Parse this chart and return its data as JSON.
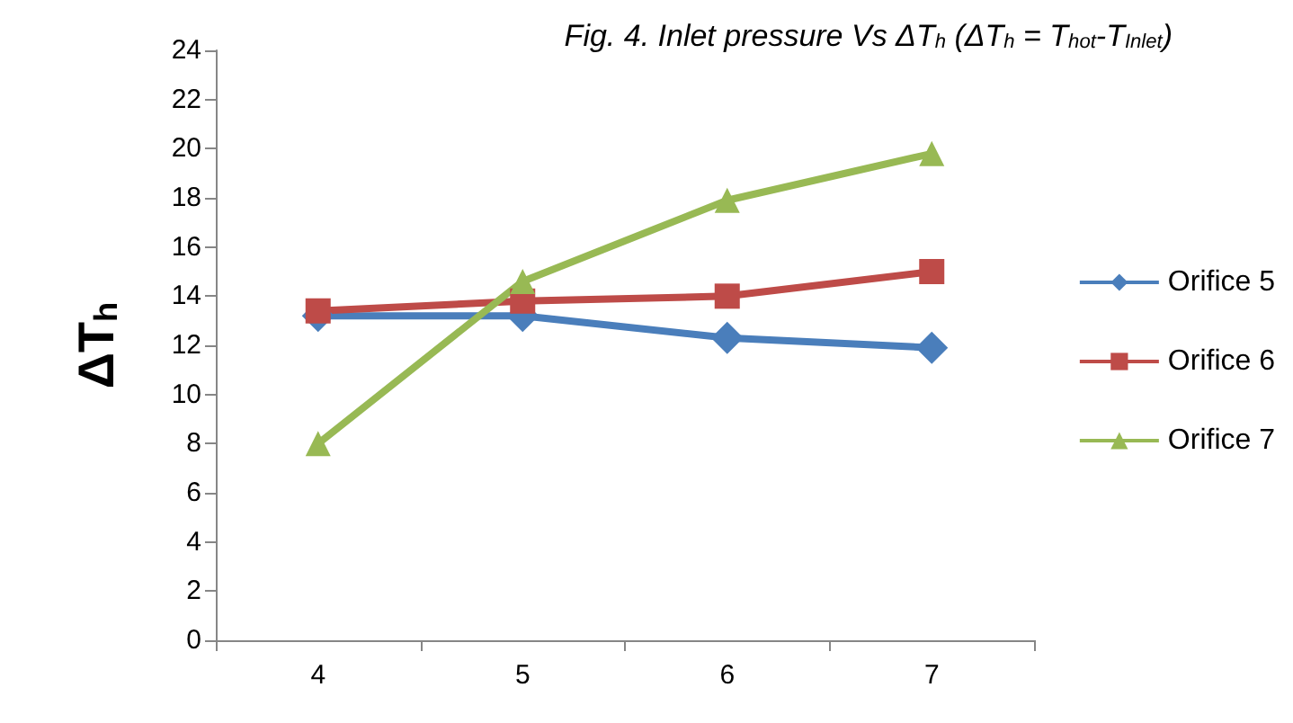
{
  "chart_data": {
    "type": "line",
    "title": "Fig. 4. Inlet pressure Vs ΔT$_{h}$ (ΔT$_{h}$ = T$_{hot}$-T$_{Inlet}$)",
    "ylabel": "ΔT$_{h}$",
    "categories": [
      "4",
      "5",
      "6",
      "7"
    ],
    "series": [
      {
        "name": "Orifice 5",
        "color": "#4a7ebb",
        "marker": "diamond",
        "values": [
          13.2,
          13.2,
          12.3,
          11.9
        ]
      },
      {
        "name": "Orifice 6",
        "color": "#be4b48",
        "marker": "square",
        "values": [
          13.4,
          13.8,
          14.0,
          15.0
        ]
      },
      {
        "name": "Orifice 7",
        "color": "#98b954",
        "marker": "triangle",
        "values": [
          8.0,
          14.6,
          17.9,
          19.8
        ]
      }
    ],
    "ylim": [
      0,
      24
    ],
    "yticks": [
      0,
      2,
      4,
      6,
      8,
      10,
      12,
      14,
      16,
      18,
      20,
      22,
      24
    ],
    "grid": false,
    "legend": "right"
  }
}
